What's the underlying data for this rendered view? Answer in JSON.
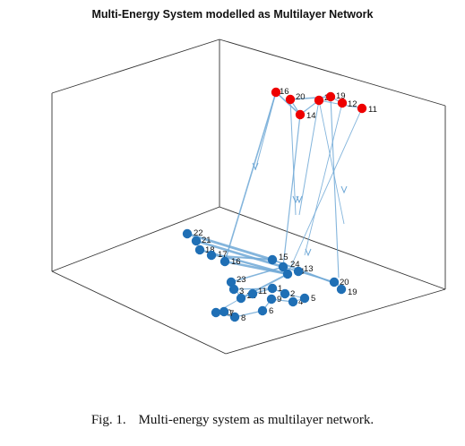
{
  "figure": {
    "title": "Multi-Energy System modelled as Multilayer Network",
    "caption_number": "Fig. 1.",
    "caption_text": "Multi-energy system as multilayer network."
  },
  "chart_data": {
    "type": "scatter",
    "title": "Multi-Energy System modelled as Multilayer Network",
    "colors": {
      "upper_layer": "#ee0000",
      "lower_layer": "#1f6fb5",
      "edges": "#6fa8d6",
      "axes": "#333333"
    },
    "upper_layer_nodes": [
      "16",
      "20",
      "24",
      "19",
      "12",
      "11",
      "14"
    ],
    "lower_layer_nodes": [
      "22",
      "21",
      "18",
      "17",
      "16",
      "15",
      "24",
      "14",
      "13",
      "23",
      "12",
      "11",
      "1",
      "9",
      "2",
      "4",
      "5",
      "10",
      "6",
      "8",
      "20",
      "19",
      "3",
      "7"
    ]
  }
}
